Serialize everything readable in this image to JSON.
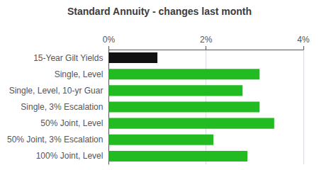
{
  "chart_data": {
    "type": "bar",
    "orientation": "horizontal",
    "title": "Standard Annuity - changes last month",
    "categories": [
      "15-Year Gilt Yields",
      "Single, Level",
      "Single, Level, 10-yr Guar",
      "Single, 3% Escalation",
      "50% Joint, Level",
      "50% Joint, 3% Escalation",
      "100% Joint, Level"
    ],
    "values": [
      1.0,
      3.1,
      2.75,
      3.1,
      3.4,
      2.15,
      2.85
    ],
    "colors": [
      "#111111",
      "#22bb22",
      "#22bb22",
      "#22bb22",
      "#22bb22",
      "#22bb22",
      "#22bb22"
    ],
    "xlim": [
      0,
      4
    ],
    "xticks": [
      {
        "value": 0,
        "label": "0%"
      },
      {
        "value": 2,
        "label": "2%"
      },
      {
        "value": 4,
        "label": "4%"
      }
    ],
    "grid": true
  }
}
